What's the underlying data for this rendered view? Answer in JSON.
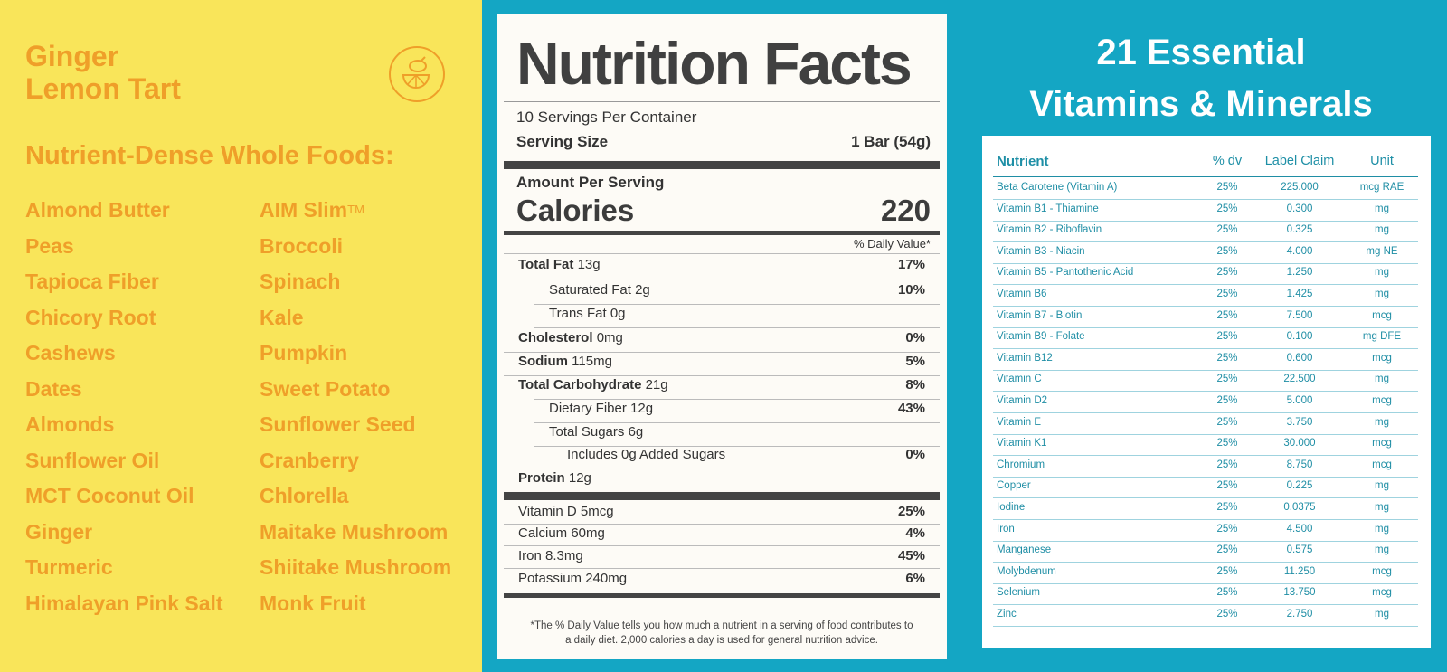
{
  "product": {
    "name_line1": "Ginger",
    "name_line2": "Lemon Tart"
  },
  "foods": {
    "heading": "Nutrient-Dense Whole Foods:",
    "col1": [
      "Almond Butter",
      "Peas",
      "Tapioca Fiber",
      "Chicory Root",
      "Cashews",
      "Dates",
      "Almonds",
      "Sunflower Oil",
      "MCT Coconut Oil",
      "Ginger",
      "Turmeric",
      "Himalayan Pink Salt"
    ],
    "col2": [
      "AIM Slim",
      "Broccoli",
      "Spinach",
      "Kale",
      "Pumpkin",
      "Sweet Potato",
      "Sunflower Seed",
      "Cranberry",
      "Chlorella",
      "Maitake Mushroom",
      "Shiitake Mushroom",
      "Monk Fruit"
    ],
    "trademark": "TM"
  },
  "nutrition": {
    "title": "Nutrition Facts",
    "servings": "10 Servings Per Container",
    "serving_size_label": "Serving Size",
    "serving_size_value": "1 Bar (54g)",
    "amount_per_serving": "Amount Per Serving",
    "calories_label": "Calories",
    "calories_value": "220",
    "daily_value_header": "% Daily Value*",
    "rows": [
      {
        "label": "Total Fat",
        "amount": "13g",
        "dv": "17%",
        "bold": true,
        "indent": 0
      },
      {
        "label": "Saturated Fat",
        "amount": "2g",
        "dv": "10%",
        "bold": false,
        "indent": 1
      },
      {
        "label": "Trans Fat",
        "amount": "0g",
        "dv": "",
        "bold": false,
        "indent": 1
      },
      {
        "label": "Cholesterol",
        "amount": "0mg",
        "dv": "0%",
        "bold": true,
        "indent": 0
      },
      {
        "label": "Sodium",
        "amount": "115mg",
        "dv": "5%",
        "bold": true,
        "indent": 0
      },
      {
        "label": "Total Carbohydrate",
        "amount": "21g",
        "dv": "8%",
        "bold": true,
        "indent": 0
      },
      {
        "label": "Dietary Fiber",
        "amount": "12g",
        "dv": "43%",
        "bold": false,
        "indent": 1
      },
      {
        "label": "Total Sugars",
        "amount": "6g",
        "dv": "",
        "bold": false,
        "indent": 1
      },
      {
        "label": "Includes 0g Added Sugars",
        "amount": "",
        "dv": "0%",
        "bold": false,
        "indent": 2
      },
      {
        "label": "Protein",
        "amount": "12g",
        "dv": "",
        "bold": true,
        "indent": 0
      }
    ],
    "minerals": [
      {
        "label": "Vitamin D 5mcg",
        "dv": "25%"
      },
      {
        "label": "Calcium 60mg",
        "dv": "4%"
      },
      {
        "label": "Iron 8.3mg",
        "dv": "45%"
      },
      {
        "label": "Potassium 240mg",
        "dv": "6%"
      }
    ],
    "footnote_line1": "*The % Daily Value tells you how much a nutrient in a serving of food contributes to",
    "footnote_line2": "a daily diet. 2,000 calories a day is used for general nutrition advice."
  },
  "vitamins": {
    "title_line1": "21 Essential",
    "title_line2": "Vitamins & Minerals",
    "headers": [
      "Nutrient",
      "% dv",
      "Label Claim",
      "Unit"
    ],
    "rows": [
      [
        "Beta Carotene (Vitamin A)",
        "25%",
        "225.000",
        "mcg RAE"
      ],
      [
        "Vitamin B1 - Thiamine",
        "25%",
        "0.300",
        "mg"
      ],
      [
        "Vitamin B2 - Riboflavin",
        "25%",
        "0.325",
        "mg"
      ],
      [
        "Vitamin B3 - Niacin",
        "25%",
        "4.000",
        "mg NE"
      ],
      [
        "Vitamin B5 - Pantothenic Acid",
        "25%",
        "1.250",
        "mg"
      ],
      [
        "Vitamin B6",
        "25%",
        "1.425",
        "mg"
      ],
      [
        "Vitamin B7 - Biotin",
        "25%",
        "7.500",
        "mcg"
      ],
      [
        "Vitamin B9 - Folate",
        "25%",
        "0.100",
        "mg DFE"
      ],
      [
        "Vitamin B12",
        "25%",
        "0.600",
        "mcg"
      ],
      [
        "Vitamin C",
        "25%",
        "22.500",
        "mg"
      ],
      [
        "Vitamin D2",
        "25%",
        "5.000",
        "mcg"
      ],
      [
        "Vitamin E",
        "25%",
        "3.750",
        "mg"
      ],
      [
        "Vitamin K1",
        "25%",
        "30.000",
        "mcg"
      ],
      [
        "Chromium",
        "25%",
        "8.750",
        "mcg"
      ],
      [
        "Copper",
        "25%",
        "0.225",
        "mg"
      ],
      [
        "Iodine",
        "25%",
        "0.0375",
        "mg"
      ],
      [
        "Iron",
        "25%",
        "4.500",
        "mg"
      ],
      [
        "Manganese",
        "25%",
        "0.575",
        "mg"
      ],
      [
        "Molybdenum",
        "25%",
        "11.250",
        "mcg"
      ],
      [
        "Selenium",
        "25%",
        "13.750",
        "mcg"
      ],
      [
        "Zinc",
        "25%",
        "2.750",
        "mg"
      ]
    ]
  },
  "colors": {
    "yellow": "#f9e55a",
    "orange": "#ef9f29",
    "teal": "#14a6c4",
    "table_text": "#1f8ea5"
  },
  "icons": {
    "badge": "lemon-icon"
  }
}
